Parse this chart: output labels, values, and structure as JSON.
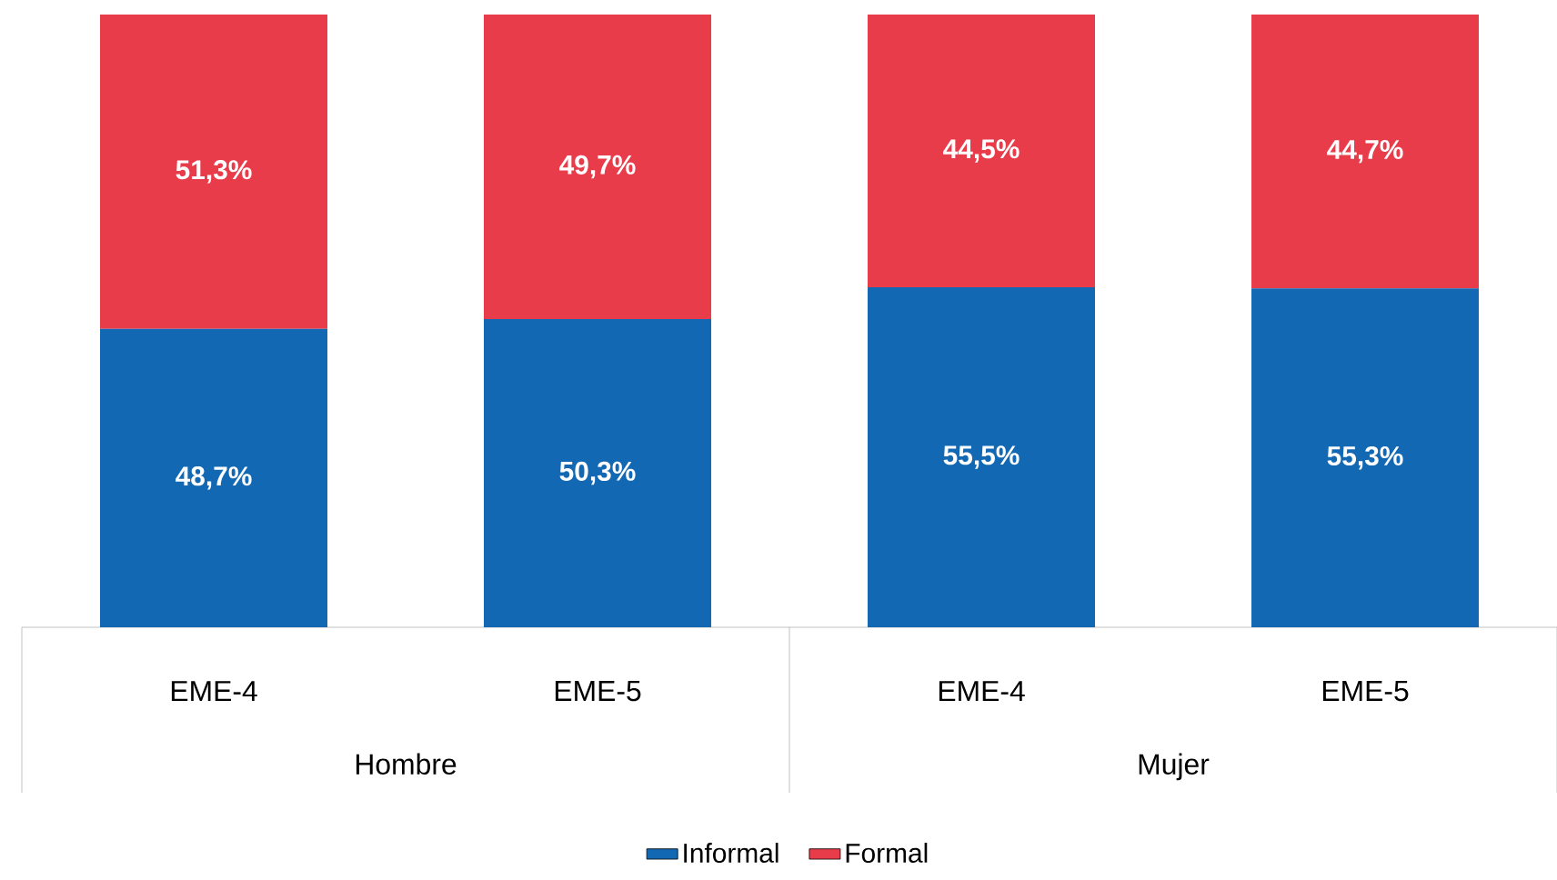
{
  "chart_data": {
    "type": "bar",
    "stacked": true,
    "categories": [
      "EME-4",
      "EME-5",
      "EME-4",
      "EME-5"
    ],
    "series": [
      {
        "name": "Informal",
        "color": "#1368b3",
        "values": [
          48.7,
          50.3,
          55.5,
          55.3
        ],
        "value_labels": [
          "48,7%",
          "50,3%",
          "55,5%",
          "55,3%"
        ]
      },
      {
        "name": "Formal",
        "color": "#e93c4a",
        "values": [
          51.3,
          49.7,
          44.5,
          44.7
        ],
        "value_labels": [
          "51,3%",
          "49,7%",
          "44,5%",
          "44,7%"
        ]
      }
    ],
    "annotations": [
      "Hombre",
      "Mujer"
    ],
    "legend": "bottom"
  }
}
